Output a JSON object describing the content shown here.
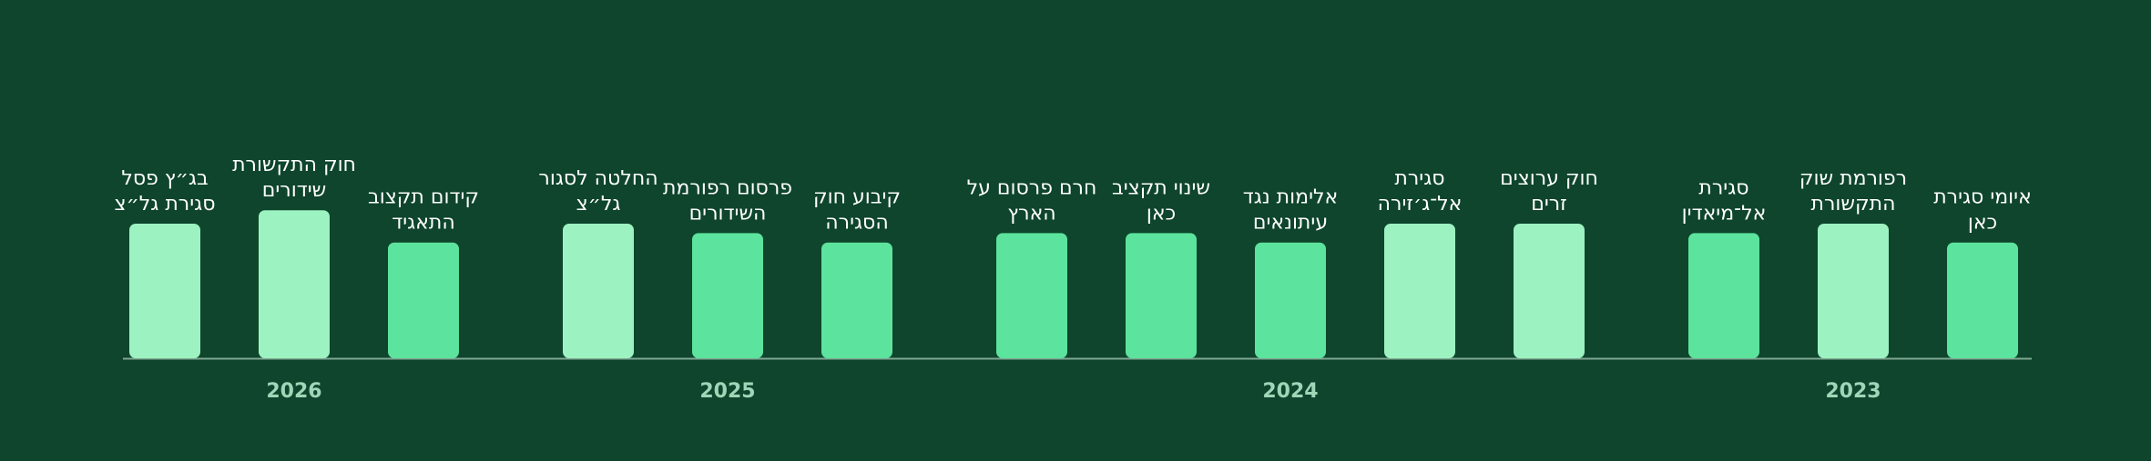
{
  "colors": {
    "background": "#0e452c",
    "light_bar": "#9df2c1",
    "mid_bar": "#5ce39d",
    "baseline": "#7fa893",
    "label_text": "#ffffff",
    "group_text": "#9fd6b8"
  },
  "chart_data": {
    "type": "bar",
    "direction": "rtl",
    "title": "",
    "xlabel": "",
    "ylabel": "",
    "y_axis_visible": false,
    "grid": false,
    "groups": [
      {
        "label": "2023",
        "bars": [
          {
            "label": [
              "איומי סגירת",
              "כאן"
            ],
            "value": 0.86,
            "tone": "mid"
          },
          {
            "label": [
              "רפורמת שוק",
              "התקשורת"
            ],
            "value": 1.0,
            "tone": "light"
          },
          {
            "label": [
              "סגירת",
              "אל־מיאדין"
            ],
            "value": 0.93,
            "tone": "mid"
          }
        ]
      },
      {
        "label": "2024",
        "bars": [
          {
            "label": [
              "חוק ערוצים",
              "זרים"
            ],
            "value": 1.0,
            "tone": "light"
          },
          {
            "label": [
              "סגירת",
              "אל־ג׳זירה"
            ],
            "value": 1.0,
            "tone": "light"
          },
          {
            "label": [
              "אלימות נגד",
              "עיתונאים"
            ],
            "value": 0.86,
            "tone": "mid"
          },
          {
            "label": [
              "שינוי תקציב",
              "כאן"
            ],
            "value": 0.93,
            "tone": "mid"
          },
          {
            "label": [
              "חרם פרסום על",
              "הארץ"
            ],
            "value": 0.93,
            "tone": "mid"
          }
        ]
      },
      {
        "label": "2025",
        "bars": [
          {
            "label": [
              "קיבוע חוק",
              "הסגירה"
            ],
            "value": 0.86,
            "tone": "mid"
          },
          {
            "label": [
              "פרסום רפורמת",
              "השידורים"
            ],
            "value": 0.93,
            "tone": "mid"
          },
          {
            "label": [
              "החלטה לסגור",
              "גל״צ"
            ],
            "value": 1.0,
            "tone": "light"
          }
        ]
      },
      {
        "label": "2026",
        "bars": [
          {
            "label": [
              "קידום תקצוב",
              "התאגיד"
            ],
            "value": 0.86,
            "tone": "mid"
          },
          {
            "label": [
              "חוק התקשורת",
              "שידורים"
            ],
            "value": 1.1,
            "tone": "light"
          },
          {
            "label": [
              "בג״ץ פסל",
              "סגירת גל״צ"
            ],
            "value": 1.0,
            "tone": "light"
          }
        ]
      }
    ]
  }
}
